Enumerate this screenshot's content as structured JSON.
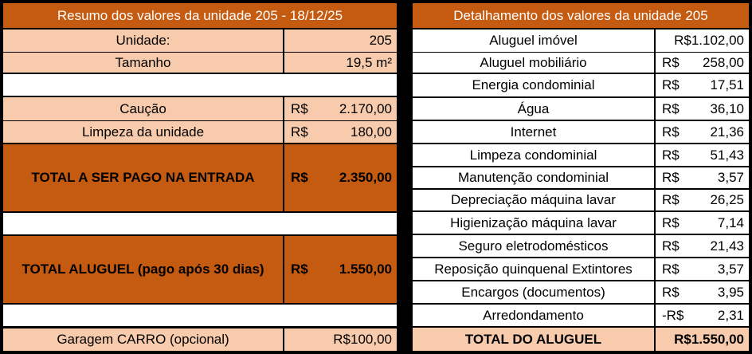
{
  "left": {
    "header": "Resumo dos valores da unidade 205 - 18/12/25",
    "unit_label": "Unidade:",
    "unit_value": "205",
    "size_label": "Tamanho",
    "size_value": "19,5 m²",
    "deposit_label": "Caução",
    "deposit_cur": "R$",
    "deposit_value": "2.170,00",
    "cleaning_label": "Limpeza da unidade",
    "cleaning_cur": "R$",
    "cleaning_value": "180,00",
    "entry_total_label": "TOTAL A SER PAGO NA ENTRADA",
    "entry_total_cur": "R$",
    "entry_total_value": "2.350,00",
    "rent_total_label": "TOTAL ALUGUEL (pago após 30 dias)",
    "rent_total_cur": "R$",
    "rent_total_value": "1.550,00",
    "garage_label": "Garagem CARRO (opcional)",
    "garage_value": "R$100,00"
  },
  "right": {
    "header": "Detalhamento dos valores da unidade 205",
    "rows": [
      {
        "label": "Aluguel imóvel",
        "cur": "R$1.102,00",
        "value": ""
      },
      {
        "label": "Aluguel mobiliário",
        "cur": "R$",
        "value": "258,00"
      },
      {
        "label": "Energia condominial",
        "cur": "R$",
        "value": "17,51"
      },
      {
        "label": "Água",
        "cur": "R$",
        "value": "36,10"
      },
      {
        "label": "Internet",
        "cur": "R$",
        "value": "21,36"
      },
      {
        "label": "Limpeza condominial",
        "cur": "R$",
        "value": "51,43"
      },
      {
        "label": "Manutenção condominial",
        "cur": "R$",
        "value": "3,57"
      },
      {
        "label": "Depreciação máquina lavar",
        "cur": "R$",
        "value": "26,25"
      },
      {
        "label": "Higienização máquina lavar",
        "cur": "R$",
        "value": "7,14"
      },
      {
        "label": "Seguro eletrodomésticos",
        "cur": "R$",
        "value": "21,43"
      },
      {
        "label": "Reposição quinquenal Extintores",
        "cur": "R$",
        "value": "3,57"
      },
      {
        "label": "Encargos (documentos)",
        "cur": "R$",
        "value": "3,95"
      },
      {
        "label": "Arredondamento",
        "cur": "-R$",
        "value": "2,31"
      }
    ],
    "total_label": "TOTAL DO ALUGUEL",
    "total_value": "R$1.550,00"
  }
}
